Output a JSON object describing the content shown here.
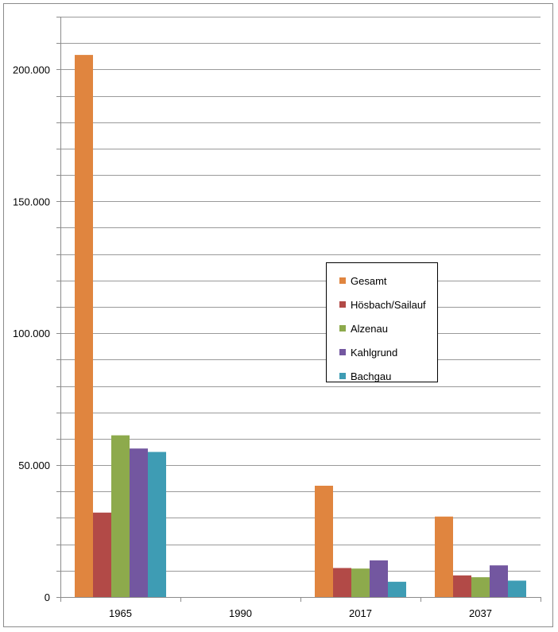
{
  "chart_data": {
    "type": "bar",
    "title": "",
    "xlabel": "",
    "ylabel": "",
    "categories": [
      "1965",
      "1990",
      "2017",
      "2037"
    ],
    "ylim": [
      0,
      220000
    ],
    "yticks": [
      {
        "value": 0,
        "label": "0"
      },
      {
        "value": 50000,
        "label": "50.000"
      },
      {
        "value": 100000,
        "label": "100.000"
      },
      {
        "value": 150000,
        "label": "150.000"
      },
      {
        "value": 200000,
        "label": "200.000"
      }
    ],
    "gridline_step": 10000,
    "legend_position": "center-right",
    "series": [
      {
        "name": "Gesamt",
        "color": "#E0853F",
        "values": [
          205500,
          0,
          42200,
          30500
        ]
      },
      {
        "name": "Hösbach/Sailauf",
        "color": "#B24A47",
        "values": [
          32000,
          0,
          11000,
          8200
        ]
      },
      {
        "name": "Alzenau",
        "color": "#8DAA4C",
        "values": [
          61300,
          0,
          10800,
          7500
        ]
      },
      {
        "name": "Kahlgrund",
        "color": "#7357A0",
        "values": [
          56300,
          0,
          13900,
          12000
        ]
      },
      {
        "name": "Bachgau",
        "color": "#3E9CB4",
        "values": [
          55000,
          0,
          5800,
          6200
        ]
      }
    ]
  }
}
